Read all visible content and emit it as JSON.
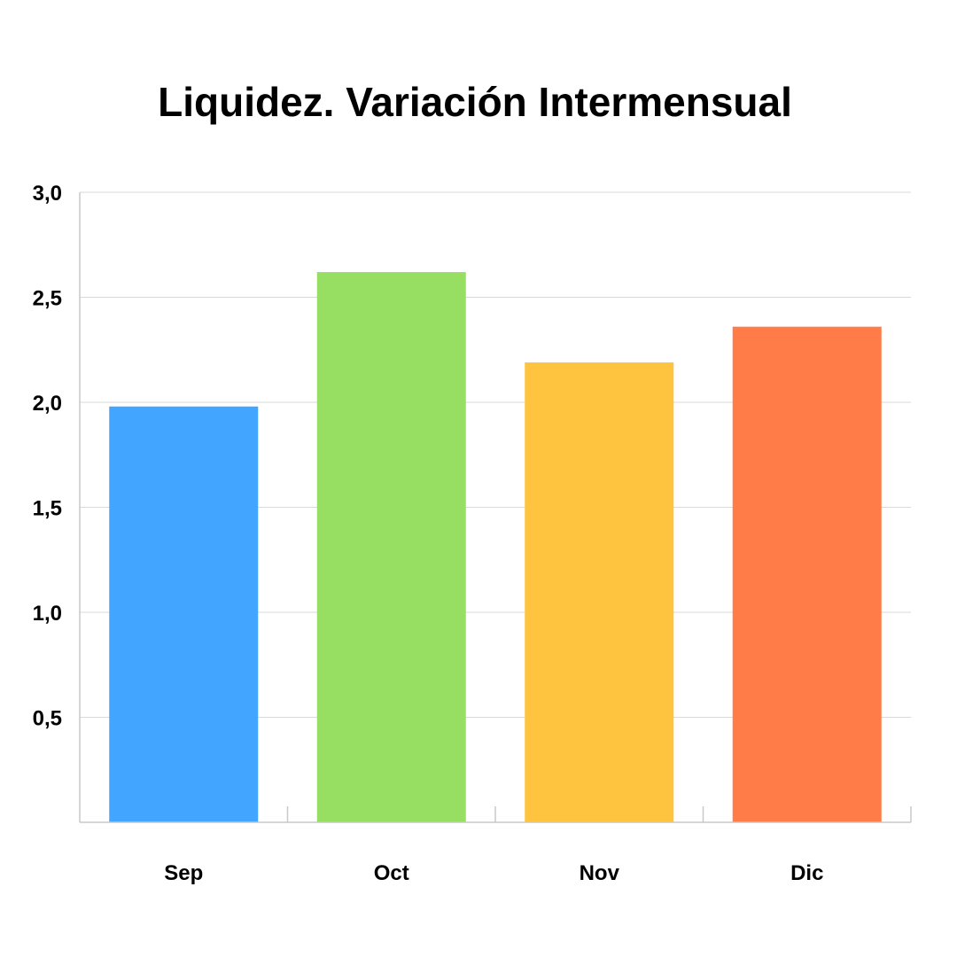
{
  "chart_data": {
    "type": "bar",
    "title": "Liquidez. Variación Intermensual",
    "categories": [
      "Sep",
      "Oct",
      "Nov",
      "Dic"
    ],
    "values": [
      1.98,
      2.62,
      2.19,
      2.36
    ],
    "colors": [
      "#42a5ff",
      "#96df62",
      "#ffc43f",
      "#ff7b48"
    ],
    "ylim": [
      0,
      3.0
    ],
    "yticks": [
      0.5,
      1.0,
      1.5,
      2.0,
      2.5,
      3.0
    ],
    "ytick_labels": [
      "0,5",
      "1,0",
      "1,5",
      "2,0",
      "2,5",
      "3,0"
    ],
    "grid": true,
    "xlabel": "",
    "ylabel": ""
  }
}
